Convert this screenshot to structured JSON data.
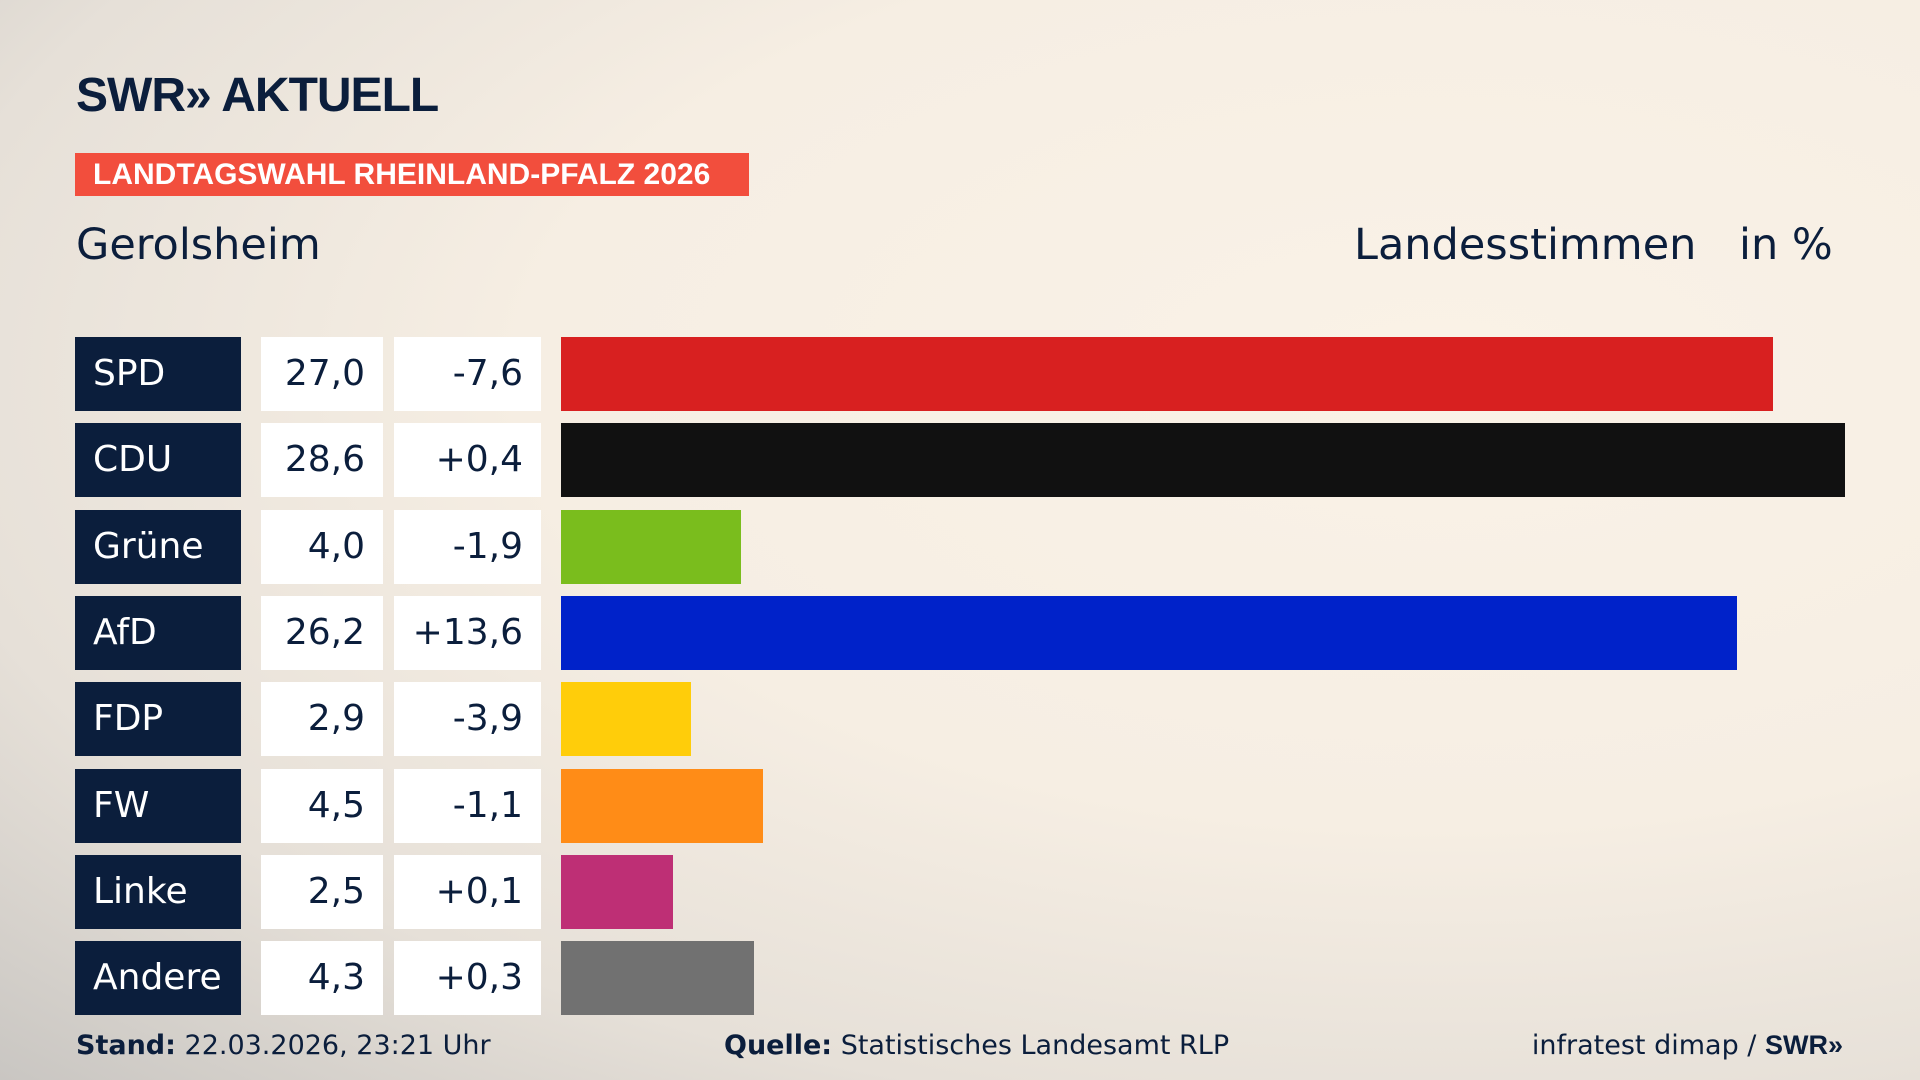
{
  "header": {
    "logo": "SWR» AKTUELL",
    "banner": "LANDTAGSWAHL RHEINLAND-PFALZ 2026",
    "region": "Gerolsheim",
    "vote_type": "Landesstimmen",
    "unit": "in %"
  },
  "chart_data": {
    "type": "bar",
    "orientation": "horizontal",
    "categories": [
      "SPD",
      "CDU",
      "Grüne",
      "AfD",
      "FDP",
      "FW",
      "Linke",
      "Andere"
    ],
    "values": [
      27.0,
      28.6,
      4.0,
      26.2,
      2.9,
      4.5,
      2.5,
      4.3
    ],
    "values_label": [
      "27,0",
      "28,6",
      "4,0",
      "26,2",
      "2,9",
      "4,5",
      "2,5",
      "4,3"
    ],
    "diff_label": [
      "-7,6",
      "+0,4",
      "-1,9",
      "+13,6",
      "-3,9",
      "-1,1",
      "+0,1",
      "+0,3"
    ],
    "diff": [
      -7.6,
      0.4,
      -1.9,
      13.6,
      -3.9,
      -1.1,
      0.1,
      0.3
    ],
    "colors": [
      "#d82020",
      "#111111",
      "#7abd1d",
      "#0022c9",
      "#ffcd0a",
      "#ff8c17",
      "#be2f75",
      "#717171"
    ],
    "xlim": [
      0,
      28.6
    ]
  },
  "footer": {
    "stand_label": "Stand:",
    "stand_value": "22.03.2026, 23:21 Uhr",
    "source_label": "Quelle:",
    "source_value": "Statistisches Landesamt RLP",
    "credit": "infratest dimap / ",
    "credit_logo": "SWR»"
  }
}
